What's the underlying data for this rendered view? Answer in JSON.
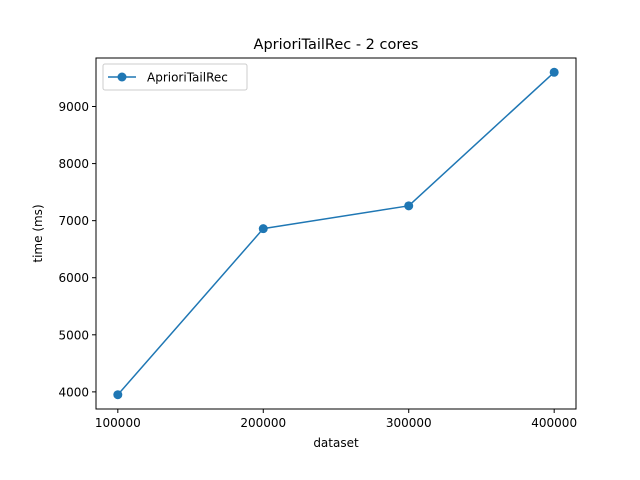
{
  "chart_data": {
    "type": "line",
    "title": "AprioriTailRec - 2 cores",
    "xlabel": "dataset",
    "ylabel": "time (ms)",
    "x": [
      100000,
      200000,
      300000,
      400000
    ],
    "series": [
      {
        "name": "AprioriTailRec",
        "values": [
          3950,
          6860,
          7260,
          9600
        ],
        "color": "#1f77b4",
        "marker": "circle"
      }
    ],
    "xlim": [
      85000,
      415000
    ],
    "ylim": [
      3700,
      9850
    ],
    "xticks": [
      100000,
      200000,
      300000,
      400000
    ],
    "yticks": [
      4000,
      5000,
      6000,
      7000,
      8000,
      9000
    ],
    "grid": false,
    "legend_position": "top-left"
  }
}
